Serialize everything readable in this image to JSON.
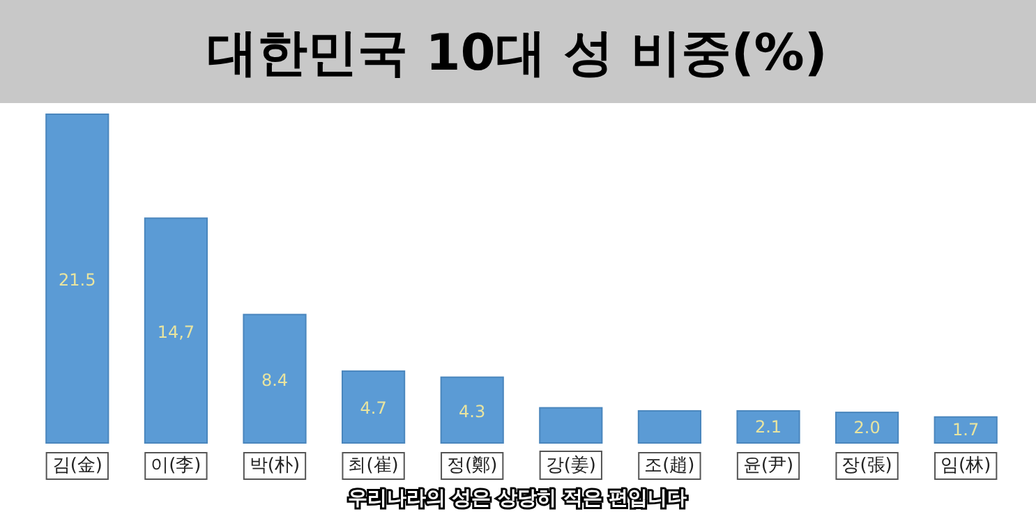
{
  "chart_data": {
    "type": "bar",
    "title": "대한민국 10대 성 비중(%)",
    "categories": [
      "김(金)",
      "이(李)",
      "박(朴)",
      "최(崔)",
      "정(鄭)",
      "강(姜)",
      "조(趙)",
      "윤(尹)",
      "장(張)",
      "임(林)"
    ],
    "values": [
      21.5,
      14.7,
      8.4,
      4.7,
      4.3,
      2.3,
      2.1,
      2.1,
      2.0,
      1.7
    ],
    "value_labels": [
      "21.5",
      "14,7",
      "8.4",
      "4.7",
      "4.3",
      null,
      null,
      "2.1",
      "2.0",
      "1.7"
    ],
    "color": "#5b9bd5",
    "annotations": [
      "우리나라의 성은 상당히 적은 편입니다"
    ]
  }
}
